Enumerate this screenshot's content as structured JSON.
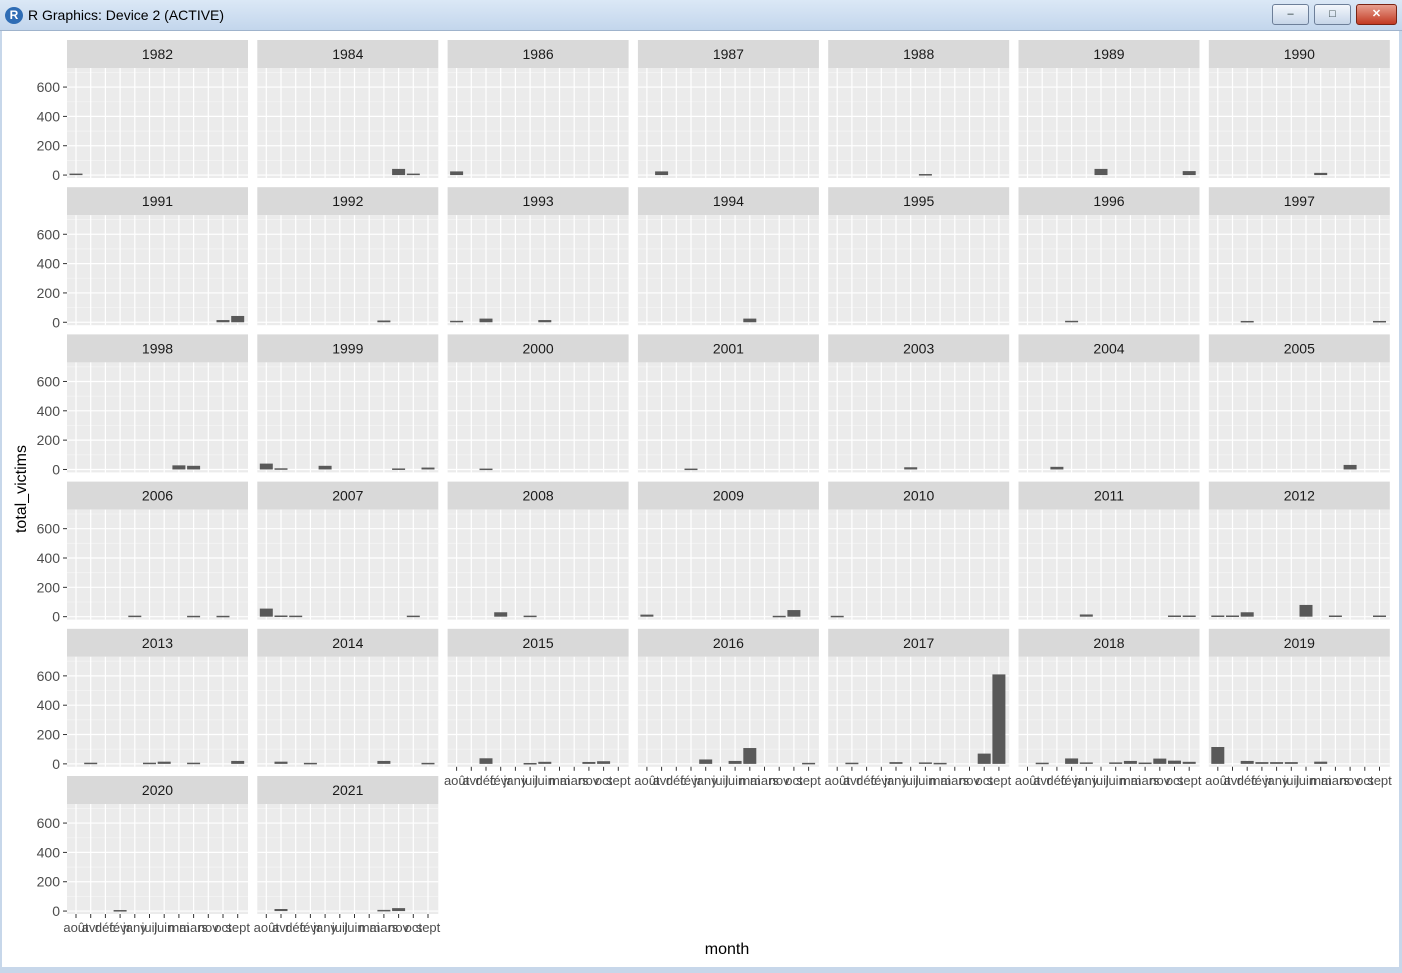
{
  "window": {
    "title": "R Graphics: Device 2 (ACTIVE)",
    "app_icon_letter": "R",
    "minimize_symbol": "–",
    "maximize_symbol": "□",
    "close_symbol": "✕"
  },
  "colors": {
    "panel_background": "#ebebeb",
    "grid_major": "#ffffff",
    "grid_minor": "#f4f4f4",
    "strip_background": "#d9d9d9",
    "bar_fill": "#595959",
    "axis_text": "#4d4d4d",
    "title_text": "#000000"
  },
  "chart_data": {
    "type": "bar",
    "facet_by": "year",
    "xlabel": "month",
    "ylabel": "total_victims",
    "ylim": [
      -20,
      730
    ],
    "yticks": [
      0,
      200,
      400,
      600
    ],
    "categories": [
      "août",
      "avr",
      "déc",
      "févr",
      "janv",
      "juil",
      "juin",
      "mai",
      "mars",
      "nov",
      "oct",
      "sept"
    ],
    "legend": "none",
    "grid": true,
    "facets": [
      {
        "year": "1982",
        "values": [
          10,
          0,
          0,
          0,
          0,
          0,
          0,
          0,
          0,
          0,
          0,
          0
        ]
      },
      {
        "year": "1984",
        "values": [
          0,
          0,
          0,
          0,
          0,
          0,
          0,
          0,
          0,
          42,
          10,
          0
        ]
      },
      {
        "year": "1986",
        "values": [
          25,
          0,
          0,
          0,
          0,
          0,
          0,
          0,
          0,
          0,
          0,
          0
        ]
      },
      {
        "year": "1987",
        "values": [
          0,
          25,
          0,
          0,
          0,
          0,
          0,
          0,
          0,
          0,
          0,
          0
        ]
      },
      {
        "year": "1988",
        "values": [
          0,
          0,
          0,
          0,
          0,
          0,
          7,
          0,
          0,
          0,
          0,
          0
        ]
      },
      {
        "year": "1989",
        "values": [
          0,
          0,
          0,
          0,
          0,
          42,
          0,
          0,
          0,
          0,
          0,
          27
        ]
      },
      {
        "year": "1990",
        "values": [
          0,
          0,
          0,
          0,
          0,
          0,
          0,
          15,
          0,
          0,
          0,
          0
        ]
      },
      {
        "year": "1991",
        "values": [
          0,
          0,
          0,
          0,
          0,
          0,
          0,
          0,
          0,
          0,
          15,
          43
        ]
      },
      {
        "year": "1992",
        "values": [
          0,
          0,
          0,
          0,
          0,
          0,
          0,
          0,
          12,
          0,
          0,
          0
        ]
      },
      {
        "year": "1993",
        "values": [
          10,
          0,
          25,
          0,
          0,
          0,
          15,
          0,
          0,
          0,
          0,
          0
        ]
      },
      {
        "year": "1994",
        "values": [
          0,
          0,
          0,
          0,
          0,
          0,
          0,
          25,
          0,
          0,
          0,
          0
        ]
      },
      {
        "year": "1995",
        "values": [
          0,
          0,
          0,
          0,
          0,
          0,
          0,
          0,
          0,
          0,
          0,
          0
        ]
      },
      {
        "year": "1996",
        "values": [
          0,
          0,
          0,
          10,
          0,
          0,
          0,
          0,
          0,
          0,
          0,
          0
        ]
      },
      {
        "year": "1997",
        "values": [
          0,
          0,
          9,
          0,
          0,
          0,
          0,
          0,
          0,
          0,
          0,
          9
        ]
      },
      {
        "year": "1998",
        "values": [
          0,
          0,
          0,
          0,
          0,
          0,
          0,
          28,
          25,
          0,
          0,
          0
        ]
      },
      {
        "year": "1999",
        "values": [
          40,
          8,
          0,
          0,
          25,
          0,
          0,
          0,
          0,
          7,
          0,
          13
        ]
      },
      {
        "year": "2000",
        "values": [
          0,
          0,
          6,
          0,
          0,
          0,
          0,
          0,
          0,
          0,
          0,
          0
        ]
      },
      {
        "year": "2001",
        "values": [
          0,
          0,
          0,
          6,
          0,
          0,
          0,
          0,
          0,
          0,
          0,
          0
        ]
      },
      {
        "year": "2003",
        "values": [
          0,
          0,
          0,
          0,
          0,
          15,
          0,
          0,
          0,
          0,
          0,
          0
        ]
      },
      {
        "year": "2004",
        "values": [
          0,
          0,
          18,
          0,
          0,
          0,
          0,
          0,
          0,
          0,
          0,
          0
        ]
      },
      {
        "year": "2005",
        "values": [
          0,
          0,
          0,
          0,
          0,
          0,
          0,
          0,
          0,
          31,
          0,
          0
        ]
      },
      {
        "year": "2006",
        "values": [
          0,
          0,
          0,
          0,
          7,
          0,
          0,
          0,
          6,
          0,
          6,
          0
        ]
      },
      {
        "year": "2007",
        "values": [
          55,
          8,
          7,
          0,
          0,
          0,
          0,
          0,
          0,
          0,
          7,
          0
        ]
      },
      {
        "year": "2008",
        "values": [
          0,
          0,
          0,
          30,
          0,
          7,
          0,
          0,
          0,
          0,
          0,
          0
        ]
      },
      {
        "year": "2009",
        "values": [
          14,
          0,
          0,
          0,
          0,
          0,
          0,
          0,
          0,
          6,
          45,
          0
        ]
      },
      {
        "year": "2010",
        "values": [
          6,
          0,
          0,
          0,
          0,
          0,
          0,
          0,
          0,
          0,
          0,
          0
        ]
      },
      {
        "year": "2011",
        "values": [
          0,
          0,
          0,
          0,
          15,
          0,
          0,
          0,
          0,
          0,
          8,
          8
        ]
      },
      {
        "year": "2012",
        "values": [
          8,
          8,
          30,
          0,
          0,
          0,
          80,
          0,
          8,
          0,
          0,
          8
        ]
      },
      {
        "year": "2013",
        "values": [
          0,
          8,
          0,
          0,
          0,
          8,
          15,
          0,
          8,
          0,
          0,
          20
        ]
      },
      {
        "year": "2014",
        "values": [
          0,
          15,
          0,
          7,
          0,
          0,
          0,
          0,
          20,
          0,
          0,
          7
        ]
      },
      {
        "year": "2015",
        "values": [
          0,
          0,
          38,
          0,
          0,
          6,
          14,
          0,
          0,
          13,
          18,
          0
        ]
      },
      {
        "year": "2016",
        "values": [
          0,
          0,
          0,
          0,
          30,
          0,
          20,
          108,
          0,
          0,
          0,
          7
        ]
      },
      {
        "year": "2017",
        "values": [
          0,
          8,
          0,
          0,
          12,
          0,
          10,
          7,
          0,
          0,
          70,
          610
        ]
      },
      {
        "year": "2018",
        "values": [
          0,
          8,
          0,
          37,
          10,
          0,
          10,
          20,
          9,
          36,
          22,
          14
        ]
      },
      {
        "year": "2019",
        "values": [
          115,
          0,
          20,
          12,
          12,
          12,
          0,
          15,
          0,
          0,
          0,
          0
        ]
      },
      {
        "year": "2020",
        "values": [
          0,
          0,
          0,
          7,
          0,
          0,
          0,
          0,
          0,
          0,
          0,
          0
        ]
      },
      {
        "year": "2021",
        "values": [
          0,
          14,
          0,
          0,
          0,
          0,
          0,
          0,
          8,
          20,
          0,
          0
        ]
      }
    ]
  }
}
